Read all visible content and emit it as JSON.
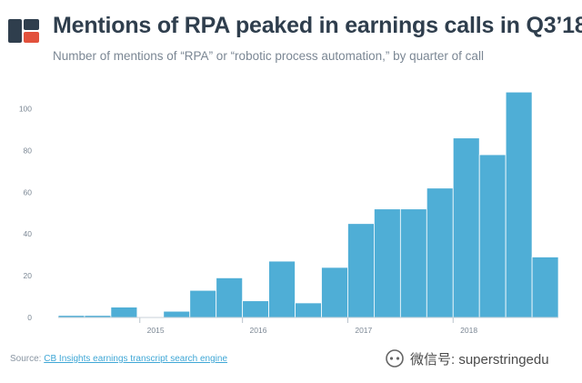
{
  "header": {
    "title": "Mentions of RPA peaked in earnings calls in Q3’18",
    "subtitle": "Number of mentions of “RPA” or “robotic process automation,” by quarter of call"
  },
  "logo": {
    "icon": "cb-insights-logo",
    "colors": [
      "#2f3e4d",
      "#e2513c"
    ]
  },
  "source": {
    "prefix": "Source:",
    "link_text": "CB Insights earnings transcript search engine"
  },
  "watermark": {
    "icon": "wechat-icon",
    "text": "微信号: superstringedu"
  },
  "chart_data": {
    "type": "bar",
    "bar_color": "#4faed6",
    "x_tick_labels": [
      "2015",
      "2016",
      "2017",
      "2018"
    ],
    "values": [
      1,
      1,
      5,
      0,
      3,
      13,
      19,
      8,
      27,
      7,
      24,
      45,
      52,
      52,
      62,
      86,
      78,
      108,
      29
    ],
    "y_ticks": [
      0,
      20,
      40,
      60,
      80,
      100
    ],
    "ylim": [
      0,
      112
    ],
    "grid": false,
    "legend": "none"
  }
}
